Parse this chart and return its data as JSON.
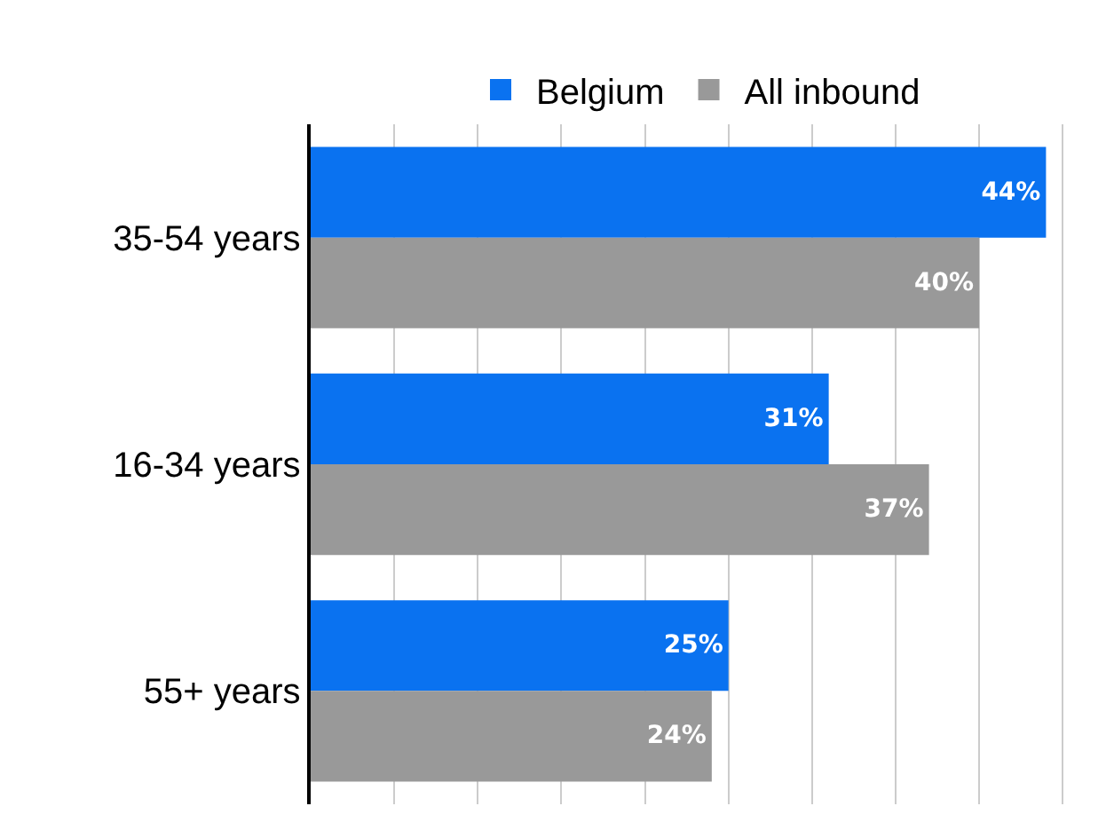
{
  "chart_data": {
    "type": "bar",
    "orientation": "horizontal",
    "categories": [
      "35-54 years",
      "16-34 years",
      "55+ years"
    ],
    "series": [
      {
        "name": "Belgium",
        "color": "#0a72f0",
        "values": [
          44,
          31,
          25
        ],
        "value_labels": [
          "44%",
          "31%",
          "25%"
        ]
      },
      {
        "name": "All inbound",
        "color": "#999999",
        "values": [
          40,
          37,
          24
        ],
        "value_labels": [
          "40%",
          "37%",
          "24%"
        ]
      }
    ],
    "tick_labels": "y",
    "grid": "x",
    "legend": "top"
  }
}
